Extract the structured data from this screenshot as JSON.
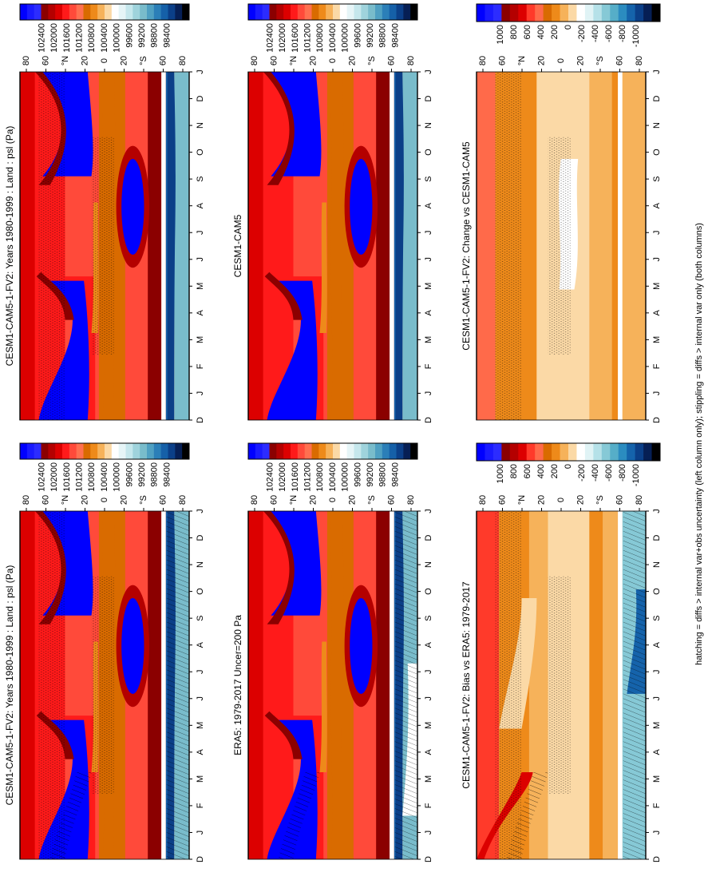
{
  "footnote": "hatching = diffs > internal var+obs uncertainty (left column only); stippling = diffs > internal var only (both columns)",
  "month_labels": [
    "D",
    "J",
    "F",
    "M",
    "A",
    "M",
    "J",
    "J",
    "A",
    "S",
    "O",
    "N",
    "D",
    "J"
  ],
  "lat_labels": [
    "80",
    "60",
    "°N",
    "20",
    "0",
    "20",
    "°S",
    "60",
    "80"
  ],
  "colormaps": {
    "psl": [
      "#0000ff",
      "#1a1aff",
      "#2c2cff",
      "#8b0000",
      "#b40000",
      "#dc0000",
      "#ff1a1a",
      "#ff4a3a",
      "#ff7050",
      "#d96b00",
      "#ee8a1a",
      "#f6b25a",
      "#fbd9a6",
      "#ffffff",
      "#e6f5f7",
      "#c5e7ec",
      "#9fd3dc",
      "#79bccb",
      "#4fa0c2",
      "#2b7fb8",
      "#1560a8",
      "#0b3f88",
      "#061f55",
      "#000000"
    ],
    "diff": [
      "#0000ff",
      "#1a1aff",
      "#2c2cff",
      "#8b0000",
      "#b40000",
      "#dc0000",
      "#ff3a2a",
      "#ff6a4a",
      "#d96b00",
      "#ee8a1a",
      "#f6b25a",
      "#fbd9a6",
      "#ffffff",
      "#e0f3f5",
      "#b5e1e8",
      "#86c9d6",
      "#56aec8",
      "#2b8cc0",
      "#1563ab",
      "#0b3f88",
      "#061f55",
      "#000000"
    ]
  },
  "colorbars": {
    "psl_labels": [
      "102400",
      "102000",
      "101600",
      "101200",
      "100800",
      "100400",
      "100000",
      "99600",
      "99200",
      "98800",
      "98400"
    ],
    "diff_labels": [
      "1000",
      "800",
      "600",
      "400",
      "200",
      "0",
      "-200",
      "-400",
      "-600",
      "-800",
      "-1000"
    ]
  },
  "chart_data": [
    {
      "type": "heatmap",
      "id": "p1",
      "title": "CESM1-CAM5-1-FV2: Years 1980-1999 : Land : psl (Pa)",
      "x": [
        "D",
        "J",
        "F",
        "M",
        "A",
        "M",
        "J",
        "J",
        "A",
        "S",
        "O",
        "N",
        "D",
        "J"
      ],
      "y": [
        "80",
        "60",
        "°N",
        "20",
        "0",
        "20",
        "°S",
        "60",
        "80"
      ],
      "colorbar": "psl",
      "hatching": true,
      "stippling": true
    },
    {
      "type": "heatmap",
      "id": "p2",
      "title": "CESM1-CAM5-1-FV2: Years 1980-1999 : Land : psl (Pa)",
      "x": [
        "D",
        "J",
        "F",
        "M",
        "A",
        "M",
        "J",
        "J",
        "A",
        "S",
        "O",
        "N",
        "D",
        "J"
      ],
      "y": [
        "80",
        "60",
        "°N",
        "20",
        "0",
        "20",
        "°S",
        "60",
        "80"
      ],
      "colorbar": "psl",
      "hatching": false,
      "stippling": true
    },
    {
      "type": "heatmap",
      "id": "p3",
      "title": "ERA5: 1979-2017 Uncer=200 Pa",
      "x": [
        "D",
        "J",
        "F",
        "M",
        "A",
        "M",
        "J",
        "J",
        "A",
        "S",
        "O",
        "N",
        "D",
        "J"
      ],
      "y": [
        "80",
        "60",
        "°N",
        "20",
        "0",
        "20",
        "°S",
        "60",
        "80"
      ],
      "colorbar": "psl",
      "hatching": true,
      "stippling": false
    },
    {
      "type": "heatmap",
      "id": "p4",
      "title": "CESM1-CAM5",
      "x": [
        "D",
        "J",
        "F",
        "M",
        "A",
        "M",
        "J",
        "J",
        "A",
        "S",
        "O",
        "N",
        "D",
        "J"
      ],
      "y": [
        "80",
        "60",
        "°N",
        "20",
        "0",
        "20",
        "°S",
        "60",
        "80"
      ],
      "colorbar": "psl",
      "hatching": false,
      "stippling": false
    },
    {
      "type": "heatmap",
      "id": "p5",
      "title": "CESM1-CAM5-1-FV2: Bias vs ERA5: 1979-2017",
      "x": [
        "D",
        "J",
        "F",
        "M",
        "A",
        "M",
        "J",
        "J",
        "A",
        "S",
        "O",
        "N",
        "D",
        "J"
      ],
      "y": [
        "80",
        "60",
        "°N",
        "20",
        "0",
        "20",
        "°S",
        "60",
        "80"
      ],
      "colorbar": "diff",
      "hatching": true,
      "stippling": true
    },
    {
      "type": "heatmap",
      "id": "p6",
      "title": "CESM1-CAM5-1-FV2: Change vs CESM1-CAM5",
      "x": [
        "D",
        "J",
        "F",
        "M",
        "A",
        "M",
        "J",
        "J",
        "A",
        "S",
        "O",
        "N",
        "D",
        "J"
      ],
      "y": [
        "80",
        "60",
        "°N",
        "20",
        "0",
        "20",
        "°S",
        "60",
        "80"
      ],
      "colorbar": "diff",
      "hatching": false,
      "stippling": true
    }
  ]
}
